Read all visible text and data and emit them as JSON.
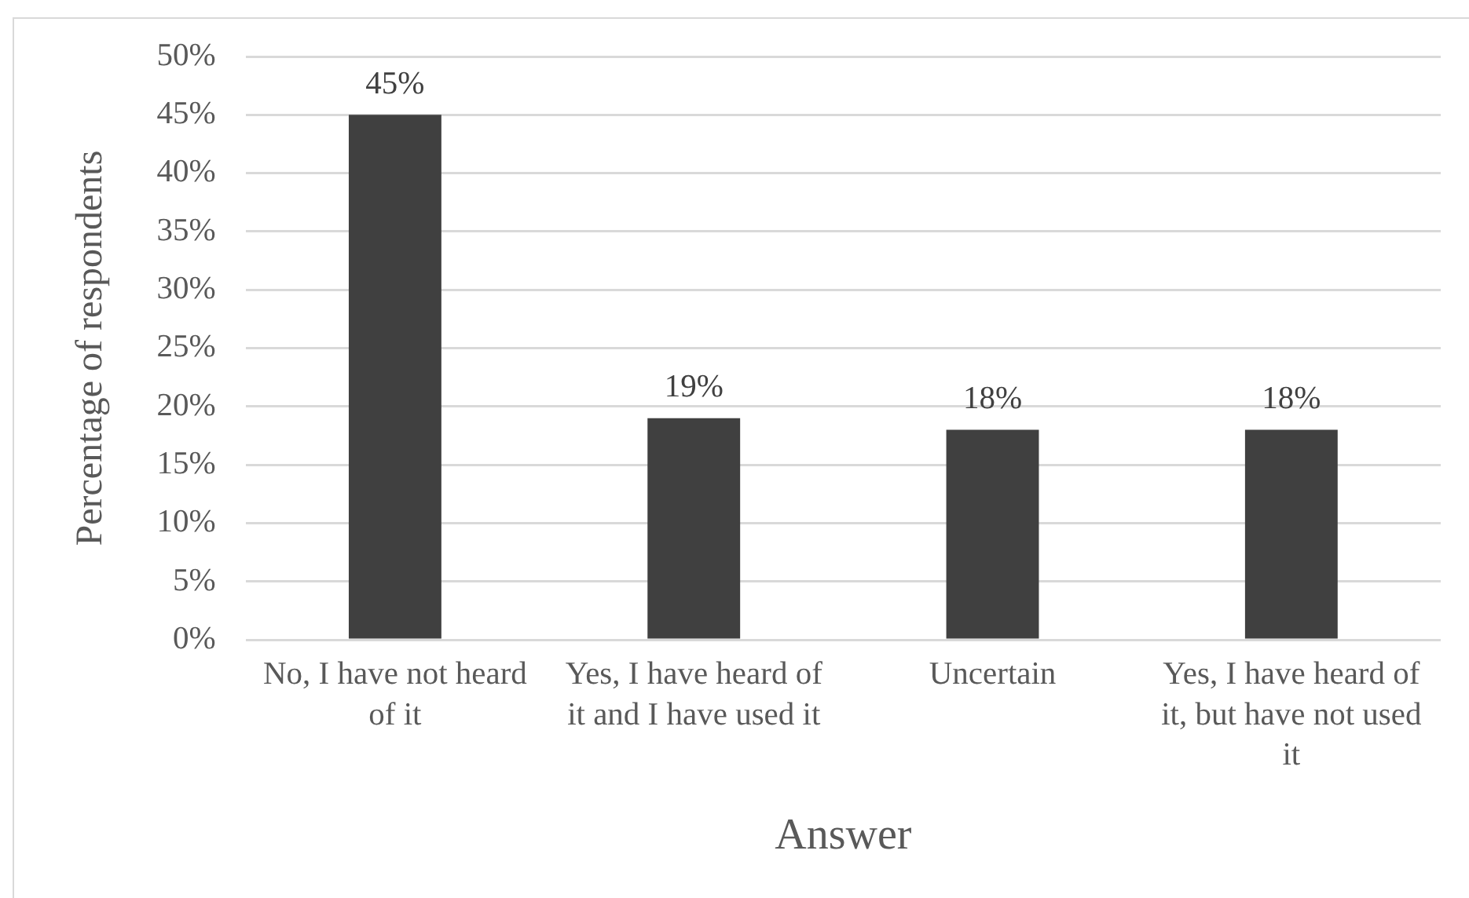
{
  "chart_data": {
    "type": "bar",
    "xlabel": "Answer",
    "ylabel": "Percentage of respondents",
    "categories": [
      "No, I have not heard of it",
      "Yes, I have heard of it and I have used it",
      "Uncertain",
      "Yes, I have heard of it, but have not used it"
    ],
    "values": [
      45,
      19,
      18,
      18
    ],
    "value_labels": [
      "45%",
      "19%",
      "18%",
      "18%"
    ],
    "color": "#404040",
    "ylim": [
      0,
      50
    ],
    "yticks": [
      {
        "value": 0,
        "label": "0%"
      },
      {
        "value": 5,
        "label": "5%"
      },
      {
        "value": 10,
        "label": "10%"
      },
      {
        "value": 15,
        "label": "15%"
      },
      {
        "value": 20,
        "label": "20%"
      },
      {
        "value": 25,
        "label": "25%"
      },
      {
        "value": 30,
        "label": "30%"
      },
      {
        "value": 35,
        "label": "35%"
      },
      {
        "value": 40,
        "label": "40%"
      },
      {
        "value": 45,
        "label": "45%"
      },
      {
        "value": 50,
        "label": "50%"
      }
    ],
    "grid": "y"
  }
}
